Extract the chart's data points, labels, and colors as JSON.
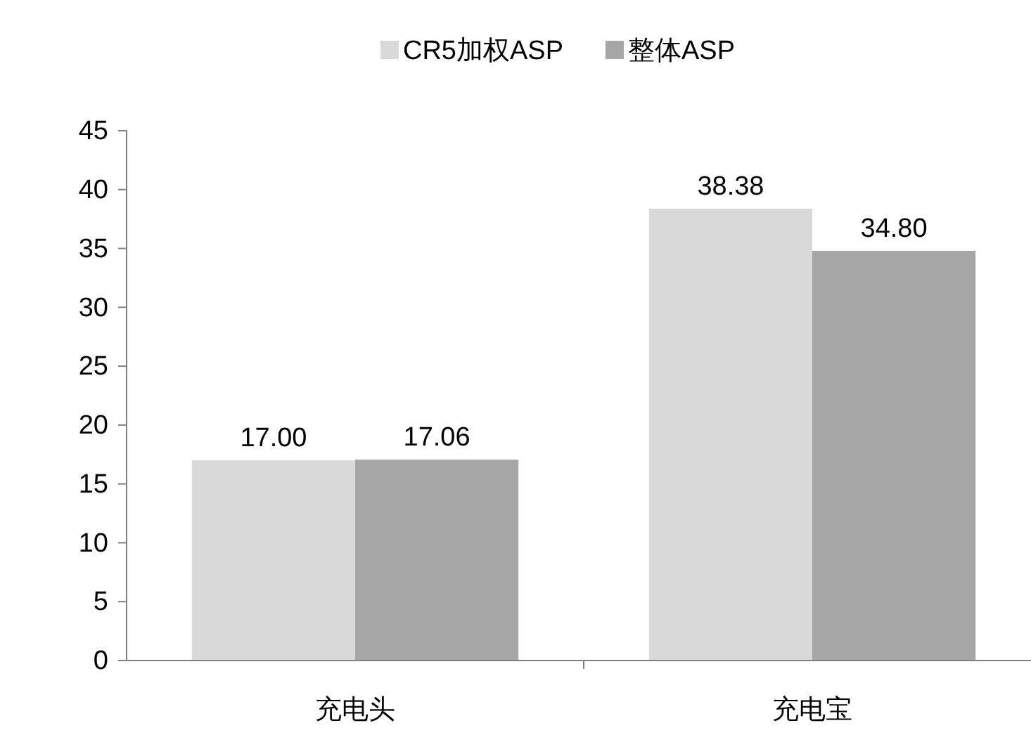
{
  "chart_data": {
    "type": "bar",
    "categories": [
      "充电头",
      "充电宝"
    ],
    "series": [
      {
        "name": "CR5加权ASP",
        "color": "#d9d9d9",
        "values": [
          17.0,
          38.38
        ],
        "value_labels": [
          "17.00",
          "38.38"
        ]
      },
      {
        "name": "整体ASP",
        "color": "#a6a6a6",
        "values": [
          17.06,
          34.8
        ],
        "value_labels": [
          "17.06",
          "34.80"
        ]
      }
    ],
    "ylim": [
      0,
      45
    ],
    "yticks": [
      0,
      5,
      10,
      15,
      20,
      25,
      30,
      35,
      40,
      45
    ],
    "grid": false,
    "legend": "top"
  }
}
